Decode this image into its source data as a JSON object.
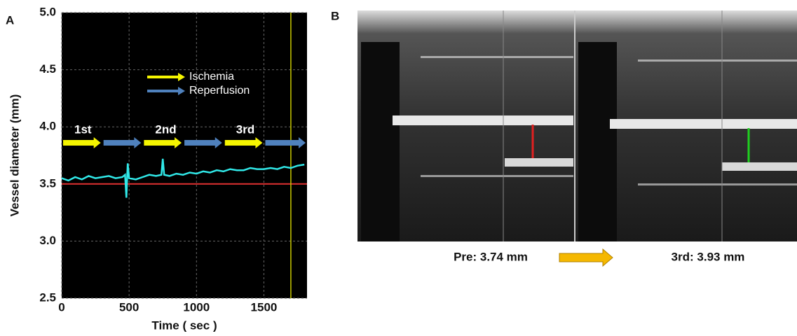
{
  "panel_labels": [
    "A",
    "B"
  ],
  "chart_data": {
    "type": "line",
    "ylabel": "Vessel diameter (mm)",
    "xlabel": "Time ( sec )",
    "xlim": [
      0,
      1820
    ],
    "xticks": [
      0,
      500,
      1000,
      1500
    ],
    "ylim": [
      2.5,
      5.0
    ],
    "yticks": [
      2.5,
      {
        "value": 3,
        "label": "3.0"
      },
      3.5,
      {
        "value": 4,
        "label": "4.0"
      },
      4.5,
      {
        "value": 5,
        "label": "5.0"
      }
    ],
    "grid": true,
    "series": [
      {
        "color": "#30e8e8",
        "x": [
          0,
          50,
          100,
          150,
          200,
          250,
          300,
          350,
          400,
          450,
          470,
          480,
          490,
          500,
          550,
          600,
          650,
          700,
          740,
          750,
          760,
          800,
          850,
          900,
          950,
          1000,
          1050,
          1100,
          1150,
          1200,
          1250,
          1300,
          1350,
          1400,
          1450,
          1500,
          1550,
          1600,
          1650,
          1700,
          1750,
          1800
        ],
        "values": [
          3.55,
          3.53,
          3.56,
          3.54,
          3.57,
          3.55,
          3.56,
          3.57,
          3.55,
          3.56,
          3.58,
          3.38,
          3.68,
          3.55,
          3.54,
          3.56,
          3.58,
          3.57,
          3.58,
          3.72,
          3.58,
          3.57,
          3.59,
          3.58,
          3.6,
          3.59,
          3.61,
          3.6,
          3.62,
          3.61,
          3.63,
          3.62,
          3.62,
          3.64,
          3.63,
          3.63,
          3.64,
          3.63,
          3.65,
          3.64,
          3.66,
          3.67
        ]
      }
    ],
    "reference_line": {
      "value": 3.5,
      "color": "#e03030"
    },
    "marker_line": {
      "x": 1700,
      "color": "#c8c800"
    },
    "phases": [
      {
        "name": "Ischemia",
        "color": "#f5f500"
      },
      {
        "name": "Reperfusion",
        "color": "#4f81bd"
      }
    ],
    "intervals": [
      {
        "label": "1st",
        "start": 0,
        "end": 300,
        "phase": 0
      },
      {
        "start": 300,
        "end": 600,
        "phase": 1
      },
      {
        "label": "2nd",
        "start": 600,
        "end": 900,
        "phase": 0
      },
      {
        "start": 900,
        "end": 1200,
        "phase": 1
      },
      {
        "label": "3rd",
        "start": 1200,
        "end": 1500,
        "phase": 0
      },
      {
        "start": 1500,
        "end": 1820,
        "phase": 1
      }
    ]
  },
  "panel_b": {
    "captions": [
      "Pre: 3.74 mm",
      "3rd: 3.93 mm"
    ]
  }
}
